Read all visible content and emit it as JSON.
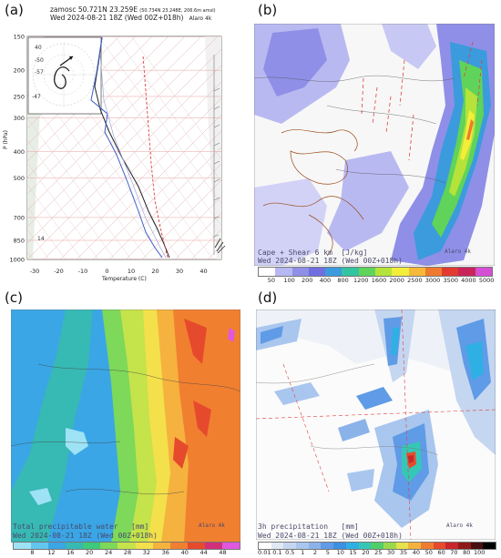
{
  "panel_a": {
    "letter": "(a)",
    "header_line1": "zamosc 50.721N 23.259E",
    "header_line1_small": "(50.734N 23.248E, 206.6m amsl)",
    "header_line2": "Wed 2024-08-21 18Z (Wed 00Z+018h)",
    "header_model": "Alaro 4k",
    "y_axis_label": "P (hPa)",
    "x_axis_label": "Temperature (C)",
    "p_ticks": [
      {
        "label": "150",
        "p": 150
      },
      {
        "label": "200",
        "p": 200
      },
      {
        "label": "250",
        "p": 250
      },
      {
        "label": "300",
        "p": 300
      },
      {
        "label": "400",
        "p": 400
      },
      {
        "label": "500",
        "p": 500
      },
      {
        "label": "700",
        "p": 700
      },
      {
        "label": "850",
        "p": 850
      },
      {
        "label": "1000",
        "p": 1000
      }
    ],
    "t_ticks": [
      "-30",
      "-20",
      "-10",
      "0",
      "10",
      "20",
      "30",
      "40"
    ],
    "hodo_labels": [
      "-50",
      "-57",
      "-47"
    ],
    "hodo_side": "40",
    "left_strip_labels": [
      "14"
    ]
  },
  "panel_b": {
    "letter": "(b)",
    "caption_line1": "Cape + Shear 6 km  [J/kg]",
    "caption_line2": "Wed 2024-08-21 18Z (Wed 00Z+018h)",
    "caption_model": "Alaro 4k",
    "colorbar": {
      "labels": [
        "50",
        "100",
        "200",
        "400",
        "800",
        "1200",
        "1600",
        "2000",
        "2500",
        "3000",
        "3500",
        "4000",
        "5000"
      ],
      "colors": [
        "#ffffff",
        "#b7b7f3",
        "#8f8fe8",
        "#6f6fe0",
        "#3b9bdc",
        "#34c3a0",
        "#5fd35a",
        "#b5e33a",
        "#f2ee3a",
        "#f6b93a",
        "#ee7a2f",
        "#e23a2f",
        "#c9245a",
        "#d44fd4"
      ]
    }
  },
  "panel_c": {
    "letter": "(c)",
    "caption_line1": "Total precipitable water   [mm]",
    "caption_line2": "Wed 2024-08-21 18Z (Wed 00Z+018h)",
    "caption_model": "Alaro 4k",
    "colorbar": {
      "labels": [
        "8",
        "12",
        "16",
        "20",
        "24",
        "28",
        "32",
        "36",
        "40",
        "44",
        "48"
      ],
      "colors": [
        "#9ee3f5",
        "#64c6ef",
        "#3aa6e6",
        "#37b9b4",
        "#3ec97b",
        "#7ed85a",
        "#c5e34a",
        "#f4e04a",
        "#f5b23e",
        "#f17f30",
        "#e64a2c",
        "#d22f7a",
        "#e057e0"
      ]
    }
  },
  "panel_d": {
    "letter": "(d)",
    "caption_line1": "3h precipitation   [mm]",
    "caption_line2": "Wed 2024-08-21 18Z (Wed 00Z+018h)",
    "caption_model": "Alaro 4k",
    "colorbar": {
      "labels": [
        "0.01",
        "0.1",
        "0.5",
        "1",
        "2",
        "5",
        "10",
        "15",
        "20",
        "25",
        "30",
        "35",
        "40",
        "50",
        "60",
        "70",
        "80",
        "100"
      ],
      "colors": [
        "#ffffff",
        "#dfe8f5",
        "#c5d6f0",
        "#a9c6ee",
        "#8bb3ea",
        "#5f9be6",
        "#3d8fe2",
        "#2fb0e4",
        "#35c7b6",
        "#4fcf6a",
        "#9bd94a",
        "#e7e14a",
        "#f3b23f",
        "#ef7d31",
        "#e64a2b",
        "#c9252a",
        "#8f1a1a",
        "#4a0e0e",
        "#000000"
      ]
    }
  }
}
